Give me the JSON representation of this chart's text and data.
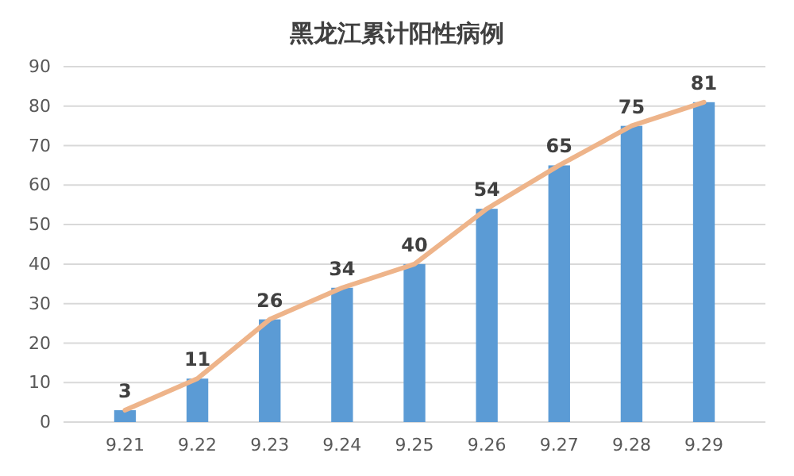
{
  "chart_data": {
    "type": "bar",
    "title": "黑龙江累计阳性病例",
    "categories": [
      "9.21",
      "9.22",
      "9.23",
      "9.24",
      "9.25",
      "9.26",
      "9.27",
      "9.28",
      "9.29"
    ],
    "series": [
      {
        "color": "#5b9bd5",
        "values": [
          3,
          11,
          26,
          34,
          40,
          54,
          65,
          75,
          81
        ],
        "value_labels": [
          "3",
          "11",
          "26",
          "34",
          "40",
          "54",
          "65",
          "75",
          "81"
        ]
      },
      {
        "type": "line",
        "color": "#eeb48a",
        "values": [
          3,
          11,
          26,
          34,
          40,
          54,
          65,
          75,
          81
        ]
      }
    ],
    "ylim": [
      0,
      90
    ],
    "yticks": [
      0,
      10,
      20,
      30,
      40,
      50,
      60,
      70,
      80,
      90
    ],
    "grid": "y",
    "marker": "none",
    "line_style": "solid"
  }
}
